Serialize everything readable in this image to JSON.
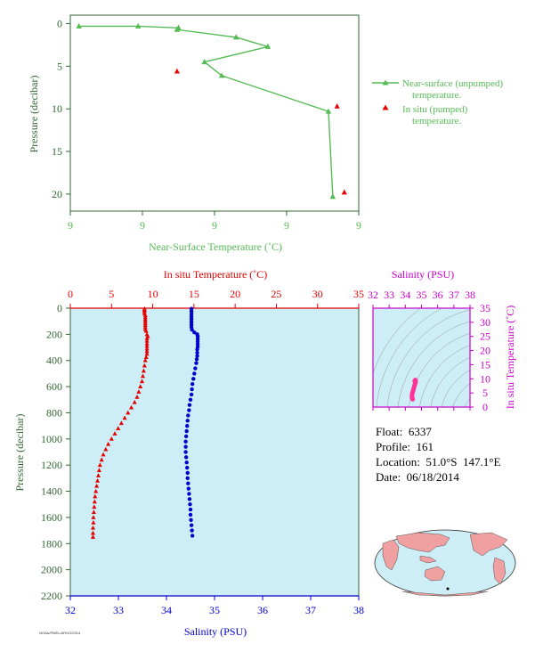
{
  "colors": {
    "green": "#55bb55",
    "dark_green": "#336633",
    "red": "#e60000",
    "blue": "#0000cc",
    "magenta": "#cc00cc",
    "pink": "#ff3399",
    "plot_bg": "#cdeef7"
  },
  "float_info": {
    "float": "Float:  6337",
    "profile": "Profile:  161",
    "location": "Location:  51.0°S  147.1°E",
    "date": "Date:  06/18/2014"
  },
  "footnote": "NOAA/PMEL/ARGO/2014",
  "chart_data": [
    {
      "id": "near-surface",
      "type": "line",
      "xlabel": "Near-Surface Temperature (˚C)",
      "ylabel": "Pressure (decibar)",
      "xticklabels": [
        "9",
        "9",
        "9",
        "9",
        "9"
      ],
      "xlim": [
        8.78,
        8.98
      ],
      "yticks": [
        0,
        5,
        10,
        15,
        20
      ],
      "ylim": [
        22,
        -1
      ],
      "series": [
        {
          "name": "Near-surface (unpumped) temperature.",
          "points": [
            [
              8.786,
              0.3
            ],
            [
              8.827,
              0.3
            ],
            [
              8.855,
              0.5
            ],
            [
              8.855,
              0.5
            ],
            [
              8.854,
              0.7
            ],
            [
              8.895,
              1.6
            ],
            [
              8.917,
              2.7
            ],
            [
              8.873,
              4.5
            ],
            [
              8.885,
              6.1
            ],
            [
              8.959,
              10.3
            ],
            [
              8.962,
              20.3
            ]
          ]
        },
        {
          "name": "In situ (pumped) temperature.",
          "points": [
            [
              8.854,
              5.6
            ],
            [
              8.965,
              9.7
            ],
            [
              8.97,
              19.8
            ]
          ]
        }
      ]
    },
    {
      "id": "profile",
      "type": "scatter",
      "ylabel": "Pressure (decibar)",
      "yticks": [
        0,
        200,
        400,
        600,
        800,
        1000,
        1200,
        1400,
        1600,
        1800,
        2000,
        2200
      ],
      "ylim": [
        2200,
        0
      ],
      "temperature": {
        "xlabel": "In situ Temperature (˚C)",
        "xticks": [
          0,
          5,
          10,
          15,
          20,
          25,
          30,
          35
        ],
        "xlim": [
          0,
          35
        ],
        "points": [
          [
            9.0,
            5
          ],
          [
            9.0,
            15
          ],
          [
            9.0,
            25
          ],
          [
            9.0,
            40
          ],
          [
            9.1,
            55
          ],
          [
            9.1,
            70
          ],
          [
            9.1,
            85
          ],
          [
            9.1,
            100
          ],
          [
            9.1,
            115
          ],
          [
            9.1,
            130
          ],
          [
            9.1,
            145
          ],
          [
            9.1,
            160
          ],
          [
            9.2,
            175
          ],
          [
            9.3,
            200
          ],
          [
            9.4,
            215
          ],
          [
            9.3,
            230
          ],
          [
            9.3,
            250
          ],
          [
            9.3,
            270
          ],
          [
            9.3,
            290
          ],
          [
            9.3,
            310
          ],
          [
            9.3,
            330
          ],
          [
            9.3,
            350
          ],
          [
            9.2,
            375
          ],
          [
            9.1,
            400
          ],
          [
            9.0,
            440
          ],
          [
            8.9,
            480
          ],
          [
            8.8,
            520
          ],
          [
            8.7,
            560
          ],
          [
            8.5,
            600
          ],
          [
            8.3,
            640
          ],
          [
            8.1,
            680
          ],
          [
            7.8,
            720
          ],
          [
            7.4,
            760
          ],
          [
            7.0,
            800
          ],
          [
            6.6,
            840
          ],
          [
            6.2,
            880
          ],
          [
            5.8,
            920
          ],
          [
            5.4,
            960
          ],
          [
            5.0,
            1000
          ],
          [
            4.6,
            1040
          ],
          [
            4.3,
            1080
          ],
          [
            4.0,
            1120
          ],
          [
            3.8,
            1160
          ],
          [
            3.6,
            1200
          ],
          [
            3.5,
            1240
          ],
          [
            3.4,
            1280
          ],
          [
            3.3,
            1320
          ],
          [
            3.2,
            1360
          ],
          [
            3.1,
            1400
          ],
          [
            3.0,
            1440
          ],
          [
            2.95,
            1480
          ],
          [
            2.9,
            1520
          ],
          [
            2.85,
            1560
          ],
          [
            2.8,
            1600
          ],
          [
            2.8,
            1640
          ],
          [
            2.75,
            1680
          ],
          [
            2.75,
            1720
          ],
          [
            2.75,
            1750
          ]
        ]
      },
      "salinity": {
        "xlabel": "Salinity (PSU)",
        "xticks": [
          32,
          33,
          34,
          35,
          36,
          37,
          38
        ],
        "xlim": [
          32,
          38
        ],
        "points": [
          [
            34.52,
            5
          ],
          [
            34.52,
            25
          ],
          [
            34.52,
            45
          ],
          [
            34.52,
            65
          ],
          [
            34.52,
            85
          ],
          [
            34.52,
            105
          ],
          [
            34.52,
            125
          ],
          [
            34.52,
            145
          ],
          [
            34.53,
            165
          ],
          [
            34.58,
            185
          ],
          [
            34.64,
            200
          ],
          [
            34.65,
            215
          ],
          [
            34.65,
            235
          ],
          [
            34.65,
            255
          ],
          [
            34.65,
            275
          ],
          [
            34.65,
            295
          ],
          [
            34.64,
            315
          ],
          [
            34.64,
            340
          ],
          [
            34.64,
            365
          ],
          [
            34.63,
            390
          ],
          [
            34.62,
            420
          ],
          [
            34.6,
            460
          ],
          [
            34.58,
            500
          ],
          [
            34.56,
            540
          ],
          [
            34.54,
            580
          ],
          [
            34.53,
            620
          ],
          [
            34.52,
            660
          ],
          [
            34.5,
            700
          ],
          [
            34.48,
            740
          ],
          [
            34.47,
            780
          ],
          [
            34.45,
            820
          ],
          [
            34.44,
            860
          ],
          [
            34.43,
            900
          ],
          [
            34.42,
            940
          ],
          [
            34.41,
            980
          ],
          [
            34.4,
            1020
          ],
          [
            34.4,
            1060
          ],
          [
            34.4,
            1100
          ],
          [
            34.41,
            1140
          ],
          [
            34.42,
            1180
          ],
          [
            34.43,
            1220
          ],
          [
            34.44,
            1260
          ],
          [
            34.44,
            1300
          ],
          [
            34.45,
            1340
          ],
          [
            34.46,
            1380
          ],
          [
            34.47,
            1420
          ],
          [
            34.48,
            1460
          ],
          [
            34.49,
            1500
          ],
          [
            34.5,
            1540
          ],
          [
            34.5,
            1580
          ],
          [
            34.51,
            1620
          ],
          [
            34.52,
            1660
          ],
          [
            34.53,
            1700
          ],
          [
            34.54,
            1740
          ]
        ]
      }
    },
    {
      "id": "ts-diagram",
      "type": "scatter",
      "xlabel": "Salinity (PSU)",
      "ylabel": "In situ Temperature (˚C)",
      "xticks": [
        32,
        33,
        34,
        35,
        36,
        37,
        38
      ],
      "xlim": [
        32,
        38
      ],
      "yticks": [
        0,
        5,
        10,
        15,
        20,
        25,
        30,
        35
      ],
      "ylim": [
        0,
        35
      ],
      "points": [
        [
          34.45,
          2.8
        ],
        [
          34.42,
          3.2
        ],
        [
          34.41,
          3.8
        ],
        [
          34.42,
          4.4
        ],
        [
          34.44,
          5.0
        ],
        [
          34.47,
          5.6
        ],
        [
          34.5,
          6.2
        ],
        [
          34.53,
          6.8
        ],
        [
          34.56,
          7.4
        ],
        [
          34.59,
          8.0
        ],
        [
          34.62,
          8.6
        ],
        [
          34.64,
          9.2
        ],
        [
          34.62,
          9.6
        ],
        [
          34.58,
          9.2
        ]
      ]
    }
  ]
}
